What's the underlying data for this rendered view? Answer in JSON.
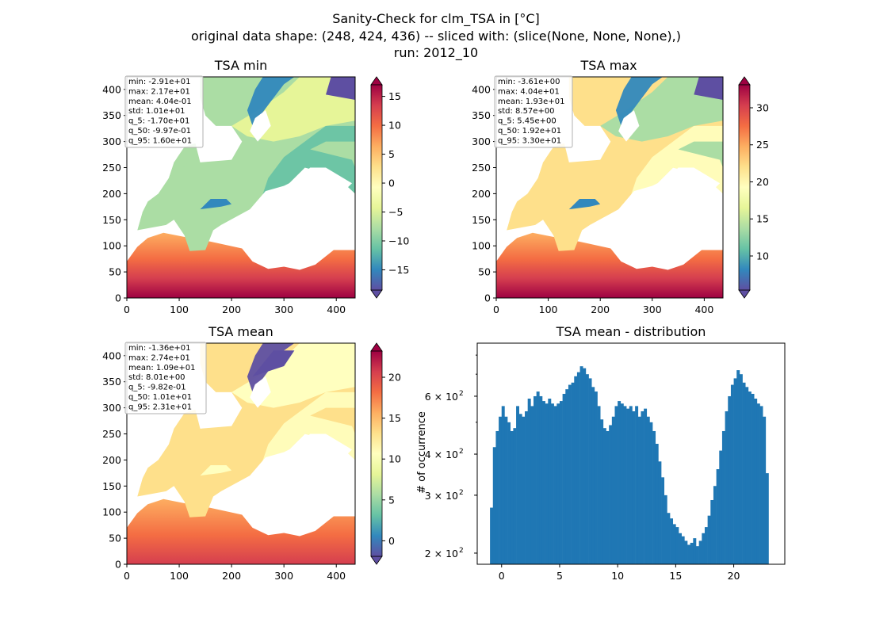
{
  "title_lines": [
    "Sanity-Check for clm_TSA in [°C]",
    "original data shape: (248, 424, 436) -- sliced with: (slice(None, None, None),)",
    "run: 2012_10"
  ],
  "colors": {
    "spectral": [
      "#5e4fa2",
      "#3288bd",
      "#66c2a5",
      "#abdda4",
      "#e6f598",
      "#ffffbf",
      "#fee08b",
      "#fdae61",
      "#f46d43",
      "#d53e4f",
      "#9e0142"
    ],
    "bar": "#1f77b4",
    "sea": "#ffffff"
  },
  "panels": [
    {
      "title": "TSA min",
      "xticks": [
        "0",
        "100",
        "200",
        "300",
        "400"
      ],
      "yticks": [
        "0",
        "50",
        "100",
        "150",
        "200",
        "250",
        "300",
        "350",
        "400"
      ],
      "stats": [
        "min: -2.91e+01",
        "max: 2.17e+01",
        "mean: 4.04e-01",
        "std: 1.01e+01",
        "q_5: -1.70e+01",
        "q_50: -9.97e-01",
        "q_95: 1.60e+01"
      ],
      "cbar_ticks": [
        "−15",
        "−10",
        "−5",
        "0",
        "5",
        "10",
        "15"
      ],
      "cbar_values": [
        -15,
        -10,
        -5,
        0,
        5,
        10,
        15
      ],
      "vmin": -18.5,
      "vmax": 17.0,
      "base": "low"
    },
    {
      "title": "TSA max",
      "xticks": [
        "0",
        "100",
        "200",
        "300",
        "400"
      ],
      "yticks": [
        "0",
        "50",
        "100",
        "150",
        "200",
        "250",
        "300",
        "350",
        "400"
      ],
      "stats": [
        "min: -3.61e+00",
        "max: 4.04e+01",
        "mean: 1.93e+01",
        "std: 8.57e+00",
        "q_5: 5.45e+00",
        "q_50: 1.92e+01",
        "q_95: 3.30e+01"
      ],
      "cbar_ticks": [
        "10",
        "15",
        "20",
        "25",
        "30"
      ],
      "cbar_values": [
        10,
        15,
        20,
        25,
        30
      ],
      "vmin": 5.4,
      "vmax": 33.1,
      "base": "high"
    },
    {
      "title": "TSA mean",
      "xticks": [
        "0",
        "100",
        "200",
        "300",
        "400"
      ],
      "yticks": [
        "0",
        "50",
        "100",
        "150",
        "200",
        "250",
        "300",
        "350",
        "400"
      ],
      "stats": [
        "min: -1.36e+01",
        "max: 2.74e+01",
        "mean: 1.09e+01",
        "std: 8.01e+00",
        "q_5: -9.82e-01",
        "q_50: 1.01e+01",
        "q_95: 2.31e+01"
      ],
      "cbar_ticks": [
        "0",
        "5",
        "10",
        "15",
        "20"
      ],
      "cbar_values": [
        0,
        5,
        10,
        15,
        20
      ],
      "vmin": -1.9,
      "vmax": 23.2,
      "base": "mid"
    }
  ],
  "chart_data": {
    "type": "bar",
    "title": "TSA mean - distribution",
    "xlabel": "",
    "ylabel": "# of occurrence",
    "xlim": [
      -2.1,
      24.4
    ],
    "ylim": [
      185,
      870
    ],
    "yscale": "log",
    "xticks": [
      0,
      5,
      10,
      15,
      20
    ],
    "xtick_labels": [
      "0",
      "5",
      "10",
      "15",
      "20"
    ],
    "yticks": [
      200,
      300,
      400,
      600
    ],
    "ytick_bases": [
      "2 × 10",
      "3 × 10",
      "4 × 10",
      "6 × 10"
    ],
    "ytick_exps": [
      "2",
      "2",
      "2",
      "2"
    ],
    "bin_width": 0.25,
    "bins": [
      {
        "x": -1.0,
        "y": 275
      },
      {
        "x": -0.75,
        "y": 420
      },
      {
        "x": -0.5,
        "y": 470
      },
      {
        "x": -0.25,
        "y": 520
      },
      {
        "x": 0.0,
        "y": 560
      },
      {
        "x": 0.25,
        "y": 520
      },
      {
        "x": 0.5,
        "y": 500
      },
      {
        "x": 0.75,
        "y": 470
      },
      {
        "x": 1.0,
        "y": 480
      },
      {
        "x": 1.25,
        "y": 560
      },
      {
        "x": 1.5,
        "y": 530
      },
      {
        "x": 1.75,
        "y": 520
      },
      {
        "x": 2.0,
        "y": 540
      },
      {
        "x": 2.25,
        "y": 590
      },
      {
        "x": 2.5,
        "y": 560
      },
      {
        "x": 2.75,
        "y": 600
      },
      {
        "x": 3.0,
        "y": 620
      },
      {
        "x": 3.25,
        "y": 600
      },
      {
        "x": 3.5,
        "y": 580
      },
      {
        "x": 3.75,
        "y": 570
      },
      {
        "x": 4.0,
        "y": 590
      },
      {
        "x": 4.25,
        "y": 570
      },
      {
        "x": 4.5,
        "y": 560
      },
      {
        "x": 4.75,
        "y": 570
      },
      {
        "x": 5.0,
        "y": 580
      },
      {
        "x": 5.25,
        "y": 610
      },
      {
        "x": 5.5,
        "y": 630
      },
      {
        "x": 5.75,
        "y": 650
      },
      {
        "x": 6.0,
        "y": 660
      },
      {
        "x": 6.25,
        "y": 690
      },
      {
        "x": 6.5,
        "y": 710
      },
      {
        "x": 6.75,
        "y": 740
      },
      {
        "x": 7.0,
        "y": 730
      },
      {
        "x": 7.25,
        "y": 700
      },
      {
        "x": 7.5,
        "y": 680
      },
      {
        "x": 7.75,
        "y": 640
      },
      {
        "x": 8.0,
        "y": 620
      },
      {
        "x": 8.25,
        "y": 560
      },
      {
        "x": 8.5,
        "y": 510
      },
      {
        "x": 8.75,
        "y": 480
      },
      {
        "x": 9.0,
        "y": 470
      },
      {
        "x": 9.25,
        "y": 490
      },
      {
        "x": 9.5,
        "y": 520
      },
      {
        "x": 9.75,
        "y": 560
      },
      {
        "x": 10.0,
        "y": 580
      },
      {
        "x": 10.25,
        "y": 570
      },
      {
        "x": 10.5,
        "y": 560
      },
      {
        "x": 10.75,
        "y": 550
      },
      {
        "x": 11.0,
        "y": 560
      },
      {
        "x": 11.25,
        "y": 540
      },
      {
        "x": 11.5,
        "y": 560
      },
      {
        "x": 11.75,
        "y": 520
      },
      {
        "x": 12.0,
        "y": 540
      },
      {
        "x": 12.25,
        "y": 550
      },
      {
        "x": 12.5,
        "y": 520
      },
      {
        "x": 12.75,
        "y": 500
      },
      {
        "x": 13.0,
        "y": 470
      },
      {
        "x": 13.25,
        "y": 430
      },
      {
        "x": 13.5,
        "y": 380
      },
      {
        "x": 13.75,
        "y": 340
      },
      {
        "x": 14.0,
        "y": 300
      },
      {
        "x": 14.25,
        "y": 265
      },
      {
        "x": 14.5,
        "y": 255
      },
      {
        "x": 14.75,
        "y": 245
      },
      {
        "x": 15.0,
        "y": 240
      },
      {
        "x": 15.25,
        "y": 230
      },
      {
        "x": 15.5,
        "y": 225
      },
      {
        "x": 15.75,
        "y": 218
      },
      {
        "x": 16.0,
        "y": 212
      },
      {
        "x": 16.25,
        "y": 215
      },
      {
        "x": 16.5,
        "y": 222
      },
      {
        "x": 16.75,
        "y": 210
      },
      {
        "x": 17.0,
        "y": 218
      },
      {
        "x": 17.25,
        "y": 230
      },
      {
        "x": 17.5,
        "y": 240
      },
      {
        "x": 17.75,
        "y": 260
      },
      {
        "x": 18.0,
        "y": 290
      },
      {
        "x": 18.25,
        "y": 320
      },
      {
        "x": 18.5,
        "y": 360
      },
      {
        "x": 18.75,
        "y": 410
      },
      {
        "x": 19.0,
        "y": 470
      },
      {
        "x": 19.25,
        "y": 540
      },
      {
        "x": 19.5,
        "y": 600
      },
      {
        "x": 19.75,
        "y": 650
      },
      {
        "x": 20.0,
        "y": 680
      },
      {
        "x": 20.25,
        "y": 720
      },
      {
        "x": 20.5,
        "y": 700
      },
      {
        "x": 20.75,
        "y": 660
      },
      {
        "x": 21.0,
        "y": 640
      },
      {
        "x": 21.25,
        "y": 620
      },
      {
        "x": 21.5,
        "y": 610
      },
      {
        "x": 21.75,
        "y": 590
      },
      {
        "x": 22.0,
        "y": 570
      },
      {
        "x": 22.25,
        "y": 560
      },
      {
        "x": 22.5,
        "y": 520
      },
      {
        "x": 22.75,
        "y": 350
      }
    ]
  }
}
